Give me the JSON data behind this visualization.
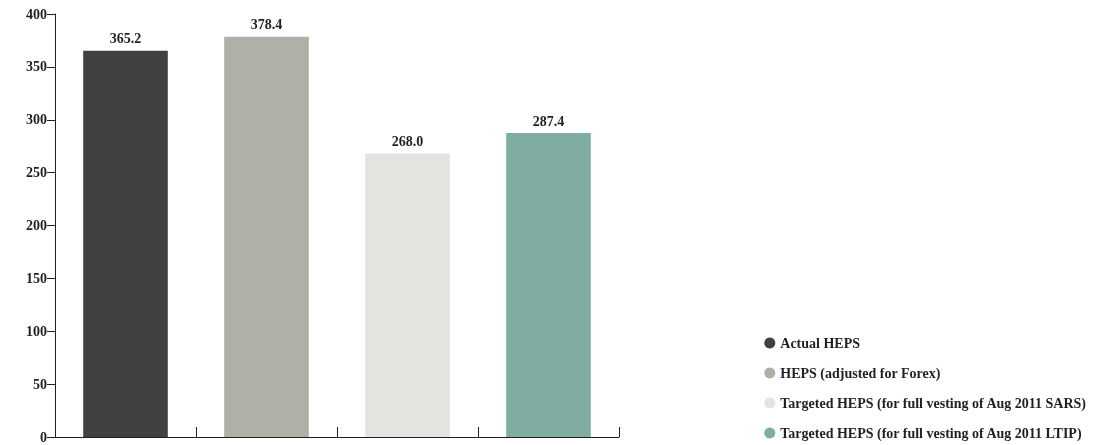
{
  "chart_data": {
    "type": "bar",
    "categories": [
      null,
      null,
      null,
      null
    ],
    "series": [
      {
        "name": "Actual HEPS",
        "color": "#414042",
        "values": [
          365.2,
          null,
          null,
          null
        ],
        "value_labels": [
          "365.2",
          null,
          null,
          null
        ]
      },
      {
        "name": "HEPS (adjusted for Forex)",
        "color": "#b0b0a8",
        "values": [
          null,
          378.4,
          null,
          null
        ],
        "value_labels": [
          null,
          "378.4",
          null,
          null
        ]
      },
      {
        "name": "Targeted HEPS (for full vesting of Aug 2011 SARS)",
        "color": "#e4e3e0",
        "values": [
          null,
          null,
          268.0,
          null
        ],
        "value_labels": [
          null,
          null,
          "268.0",
          null
        ]
      },
      {
        "name": "Targeted HEPS (for full vesting of Aug 2011 LTIP)",
        "color": "#7fada3",
        "values": [
          null,
          null,
          null,
          287.4
        ],
        "value_labels": [
          null,
          null,
          null,
          "287.4"
        ]
      }
    ],
    "ylim": [
      0,
      400
    ],
    "yticks": [
      0,
      50,
      100,
      150,
      200,
      250,
      300,
      350,
      400
    ],
    "grid": false,
    "legend": "bottom right"
  }
}
